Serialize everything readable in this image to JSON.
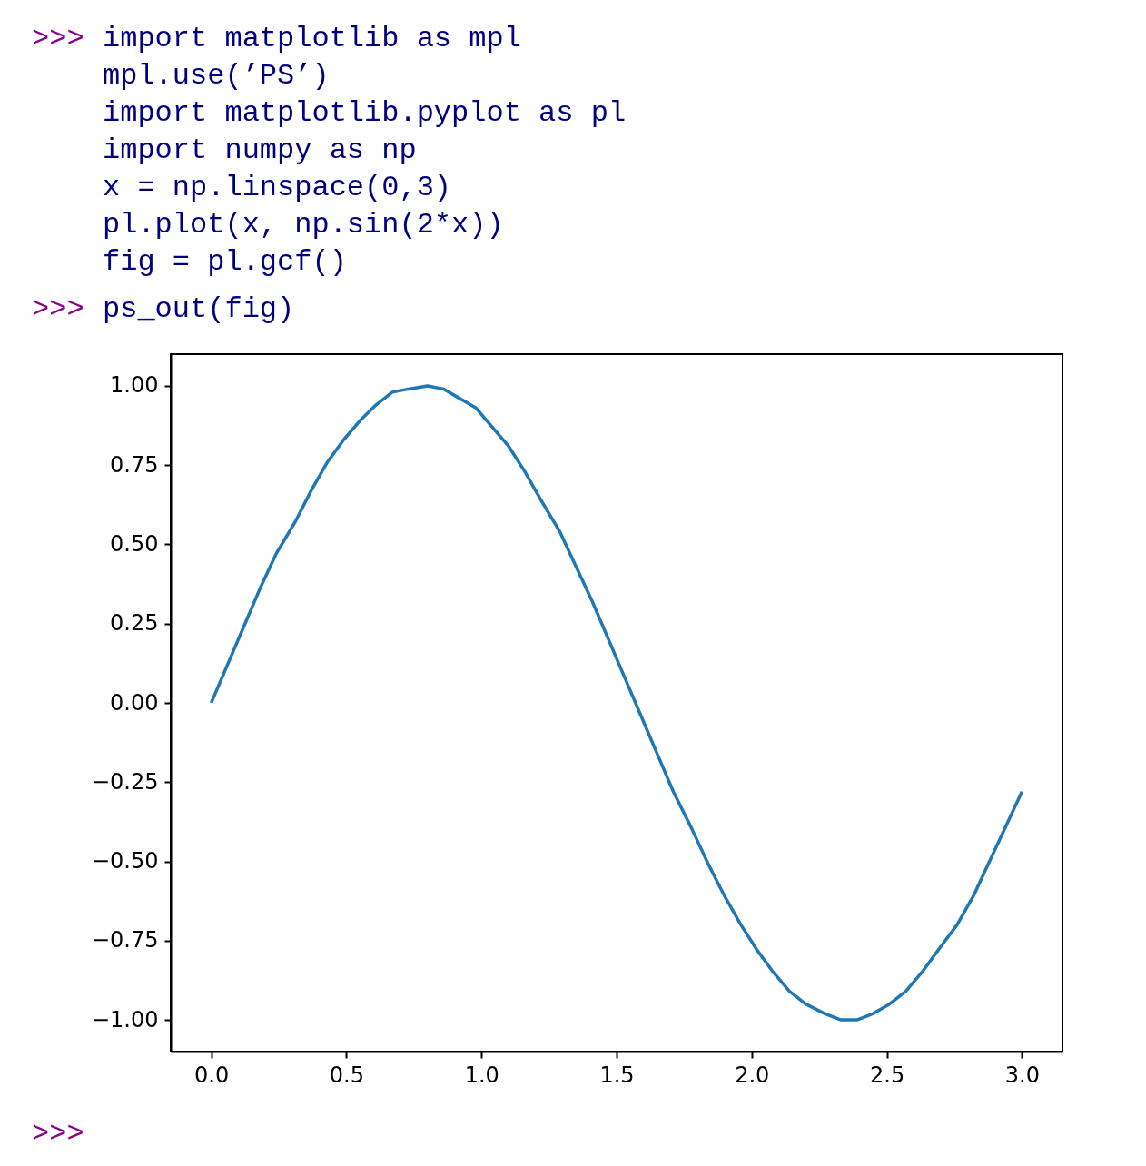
{
  "chart_data": {
    "type": "line",
    "annotations": [
      ">>>",
      "import matplotlib as mpl",
      "mpl.use(’PS’)",
      "import matplotlib.pyplot as pl",
      "import numpy as np",
      "x = np.linspace(0,3)",
      "pl.plot(x, np.sin(2*x))",
      "fig = pl.gcf()",
      ">>>",
      "ps_out(fig)",
      ">>>"
    ],
    "x": [
      0,
      0.06,
      0.12,
      0.18,
      0.24,
      0.31,
      0.37,
      0.43,
      0.49,
      0.55,
      0.61,
      0.67,
      0.73,
      0.8,
      0.86,
      0.92,
      0.98,
      1.04,
      1.1,
      1.16,
      1.22,
      1.29,
      1.35,
      1.41,
      1.47,
      1.53,
      1.59,
      1.65,
      1.71,
      1.78,
      1.84,
      1.9,
      1.96,
      2.02,
      2.08,
      2.14,
      2.2,
      2.27,
      2.33,
      2.39,
      2.45,
      2.51,
      2.57,
      2.63,
      2.69,
      2.76,
      2.82,
      2.88,
      2.94,
      3.0
    ],
    "series": [
      {
        "color": "#1f77b4",
        "values": [
          0,
          0.12,
          0.24,
          0.36,
          0.47,
          0.57,
          0.67,
          0.76,
          0.83,
          0.89,
          0.94,
          0.98,
          0.99,
          1.0,
          0.99,
          0.96,
          0.93,
          0.87,
          0.81,
          0.73,
          0.64,
          0.54,
          0.43,
          0.32,
          0.2,
          0.08,
          -0.04,
          -0.16,
          -0.28,
          -0.4,
          -0.51,
          -0.61,
          -0.7,
          -0.78,
          -0.85,
          -0.91,
          -0.95,
          -0.98,
          -1.0,
          -1.0,
          -0.98,
          -0.95,
          -0.91,
          -0.85,
          -0.78,
          -0.7,
          -0.61,
          -0.5,
          -0.39,
          -0.28
        ]
      }
    ],
    "xlim": [
      -0.15,
      3.15
    ],
    "xticks": [
      {
        "value": 0,
        "label": "0.0"
      },
      0.5,
      {
        "value": 1,
        "label": "1.0"
      },
      1.5,
      {
        "value": 2,
        "label": "2.0"
      },
      2.5,
      {
        "value": 3,
        "label": "3.0"
      }
    ],
    "ylim": [
      -1.1,
      1.1
    ],
    "yticks": [
      {
        "value": -1,
        "label": "−1.00"
      },
      {
        "value": -0.75,
        "label": "−0.75"
      },
      {
        "value": -0.5,
        "label": "−0.50"
      },
      {
        "value": -0.25,
        "label": "−0.25"
      },
      {
        "value": 0,
        "label": "0.00"
      },
      {
        "value": 0.25,
        "label": "0.25"
      },
      {
        "value": 0.5,
        "label": "0.50"
      },
      {
        "value": 0.75,
        "label": "0.75"
      },
      {
        "value": 1,
        "label": "1.00"
      }
    ],
    "grid": false,
    "line_style": "solid"
  }
}
